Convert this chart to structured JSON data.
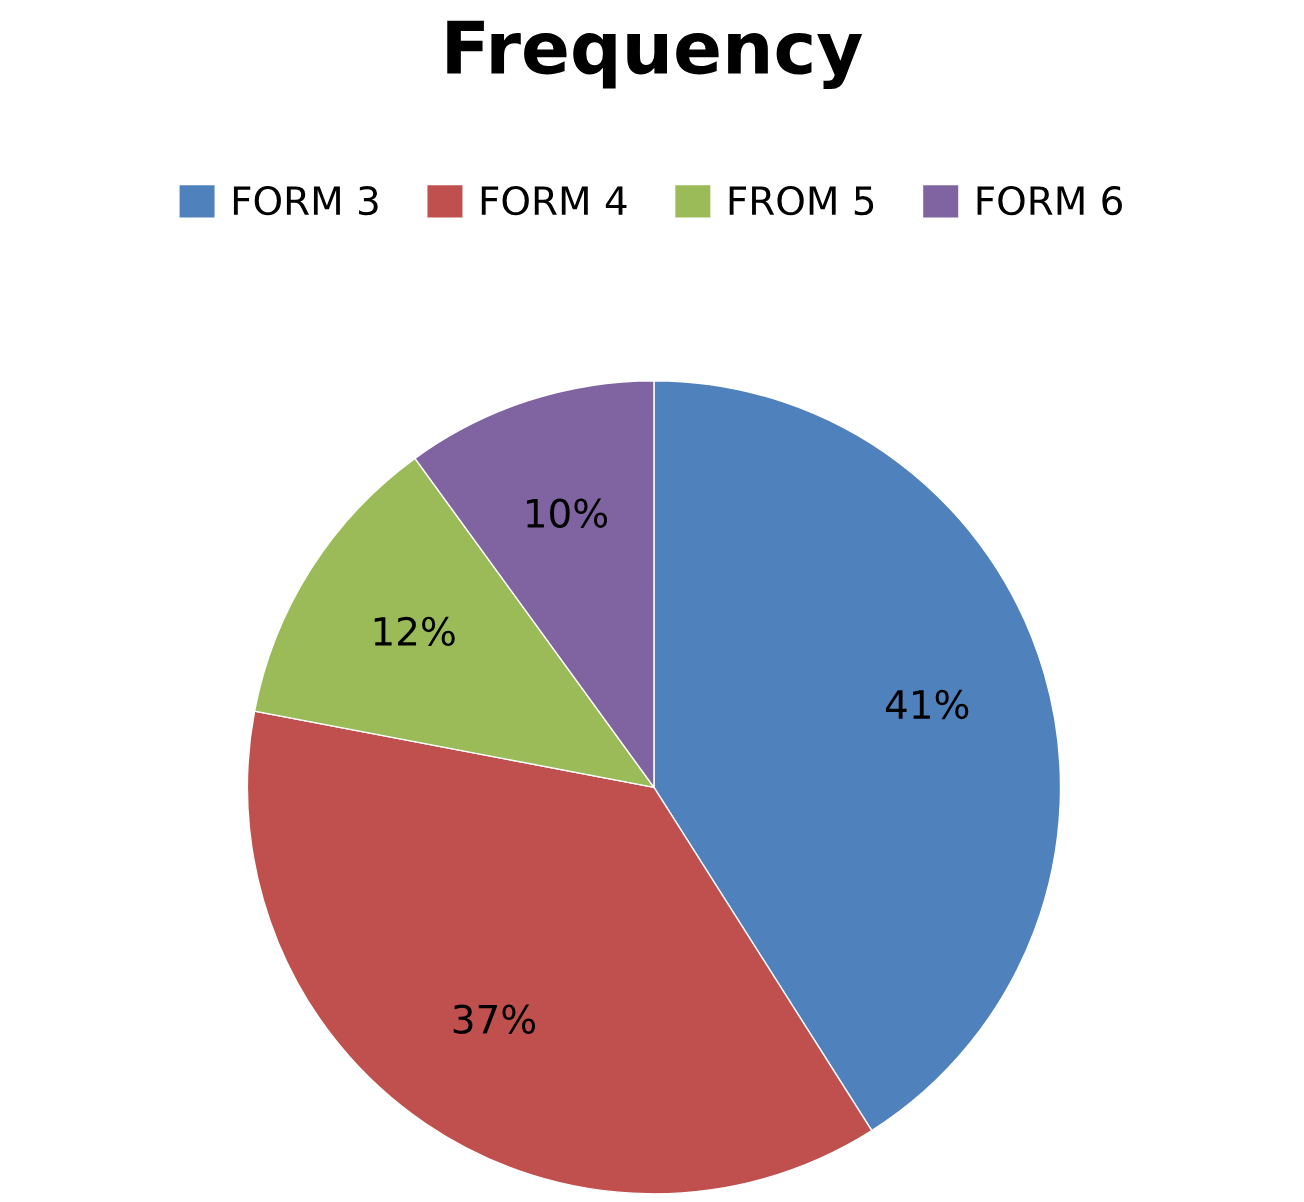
{
  "chart_data": {
    "type": "pie",
    "title": "Frequency",
    "categories": [
      "FORM 3",
      "FORM 4",
      "FROM 5",
      "FORM 6"
    ],
    "values": [
      41,
      37,
      12,
      10
    ],
    "colors": [
      "#4f81bd",
      "#c0504d",
      "#9bbb59",
      "#8064a2"
    ],
    "value_labels": [
      "41%",
      "37%",
      "12%",
      "10%"
    ],
    "legend": "top"
  }
}
